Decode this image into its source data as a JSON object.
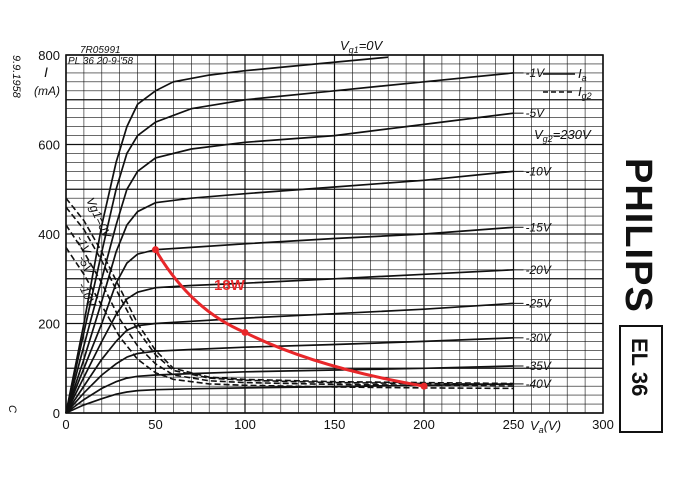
{
  "chart_data": {
    "type": "line",
    "xlabel": "V",
    "xlabel_sub": "a",
    "xlabel_unit": "(V)",
    "ylabel": "I",
    "ylabel_unit": "(mA)",
    "xlim": [
      0,
      300
    ],
    "ylim": [
      0,
      800
    ],
    "x_ticks": [
      0,
      50,
      100,
      150,
      200,
      250,
      300
    ],
    "y_ticks": [
      0,
      200,
      400,
      600,
      800
    ],
    "grid": true,
    "header": {
      "code": "7R05991",
      "tube_date": "PL 36  20-9-'58",
      "vg1_top": "V",
      "vg1_top_sub": "g1",
      "vg1_top_val": "=0V"
    },
    "side_date": "9.9.1958",
    "side_mark": "C",
    "vg2": {
      "prefix": "V",
      "sub": "g2",
      "value": "=230V"
    },
    "legend": {
      "position": "top-right",
      "entries": [
        {
          "symbol": "I",
          "sub": "a",
          "style": "solid"
        },
        {
          "symbol": "I",
          "sub": "g2",
          "style": "dashed"
        }
      ]
    },
    "anode_series": [
      {
        "name": "0V",
        "x": [
          0,
          10,
          20,
          28,
          34,
          40,
          50,
          60,
          80,
          100,
          140,
          180
        ],
        "y": [
          0,
          200,
          420,
          560,
          640,
          690,
          720,
          740,
          755,
          765,
          780,
          795
        ]
      },
      {
        "name": "-1V",
        "x": [
          0,
          10,
          20,
          28,
          34,
          40,
          50,
          70,
          100,
          150,
          200,
          250
        ],
        "y": [
          0,
          180,
          360,
          500,
          580,
          620,
          650,
          680,
          700,
          720,
          740,
          760
        ]
      },
      {
        "name": "-5V",
        "x": [
          0,
          10,
          20,
          28,
          34,
          40,
          50,
          70,
          100,
          150,
          200,
          250
        ],
        "y": [
          0,
          150,
          300,
          420,
          500,
          540,
          570,
          590,
          605,
          620,
          645,
          670
        ]
      },
      {
        "name": "-10V",
        "x": [
          0,
          10,
          20,
          28,
          34,
          40,
          50,
          70,
          100,
          150,
          200,
          250
        ],
        "y": [
          0,
          120,
          250,
          360,
          420,
          450,
          470,
          480,
          490,
          505,
          520,
          540
        ]
      },
      {
        "name": "-15V",
        "x": [
          0,
          10,
          20,
          28,
          34,
          40,
          50,
          70,
          100,
          150,
          200,
          250
        ],
        "y": [
          0,
          100,
          200,
          290,
          335,
          355,
          365,
          370,
          378,
          390,
          400,
          415
        ]
      },
      {
        "name": "-20V",
        "x": [
          0,
          10,
          20,
          28,
          34,
          40,
          50,
          70,
          100,
          150,
          200,
          250
        ],
        "y": [
          0,
          80,
          160,
          220,
          255,
          270,
          280,
          285,
          290,
          300,
          310,
          320
        ]
      },
      {
        "name": "-25V",
        "x": [
          0,
          10,
          20,
          28,
          34,
          40,
          50,
          70,
          100,
          150,
          200,
          250
        ],
        "y": [
          0,
          60,
          120,
          160,
          185,
          195,
          200,
          205,
          212,
          222,
          232,
          245
        ]
      },
      {
        "name": "-30V",
        "x": [
          0,
          10,
          20,
          28,
          34,
          40,
          50,
          70,
          100,
          150,
          200,
          250
        ],
        "y": [
          0,
          45,
          85,
          110,
          125,
          133,
          138,
          142,
          147,
          153,
          160,
          168
        ]
      },
      {
        "name": "-35V",
        "x": [
          0,
          10,
          20,
          28,
          34,
          40,
          50,
          70,
          100,
          150,
          200,
          250
        ],
        "y": [
          0,
          30,
          55,
          70,
          78,
          82,
          85,
          88,
          92,
          96,
          100,
          105
        ]
      },
      {
        "name": "-40V",
        "x": [
          0,
          10,
          20,
          28,
          34,
          40,
          50,
          70,
          100,
          150,
          200,
          250
        ],
        "y": [
          0,
          18,
          32,
          42,
          47,
          50,
          52,
          54,
          56,
          59,
          62,
          65
        ]
      }
    ],
    "screen_series": [
      {
        "name": "Vg1=0V",
        "x": [
          0,
          10,
          20,
          30,
          40,
          50,
          60,
          80,
          100,
          150,
          200,
          250
        ],
        "y": [
          480,
          430,
          360,
          280,
          200,
          140,
          100,
          80,
          75,
          70,
          68,
          66
        ]
      },
      {
        "name": "-1V",
        "x": [
          0,
          10,
          20,
          30,
          40,
          50,
          60,
          80,
          100,
          150,
          200,
          250
        ],
        "y": [
          460,
          410,
          340,
          260,
          185,
          130,
          95,
          78,
          73,
          68,
          66,
          64
        ]
      },
      {
        "name": "-5V",
        "x": [
          0,
          10,
          20,
          30,
          40,
          50,
          60,
          80,
          100,
          150,
          200,
          250
        ],
        "y": [
          420,
          360,
          290,
          210,
          150,
          110,
          85,
          72,
          68,
          64,
          62,
          60
        ]
      },
      {
        "name": "-10V",
        "x": [
          0,
          10,
          20,
          30,
          40,
          50,
          60,
          80,
          100,
          150,
          200,
          250
        ],
        "y": [
          370,
          310,
          240,
          170,
          120,
          90,
          75,
          65,
          62,
          58,
          56,
          55
        ]
      }
    ],
    "load_line": {
      "label": "18W",
      "x": [
        50,
        100,
        200
      ],
      "y": [
        365,
        180,
        60
      ],
      "color": "#e8272a"
    },
    "brand_text": "PHILIPS",
    "tube_type": "EL 36"
  }
}
